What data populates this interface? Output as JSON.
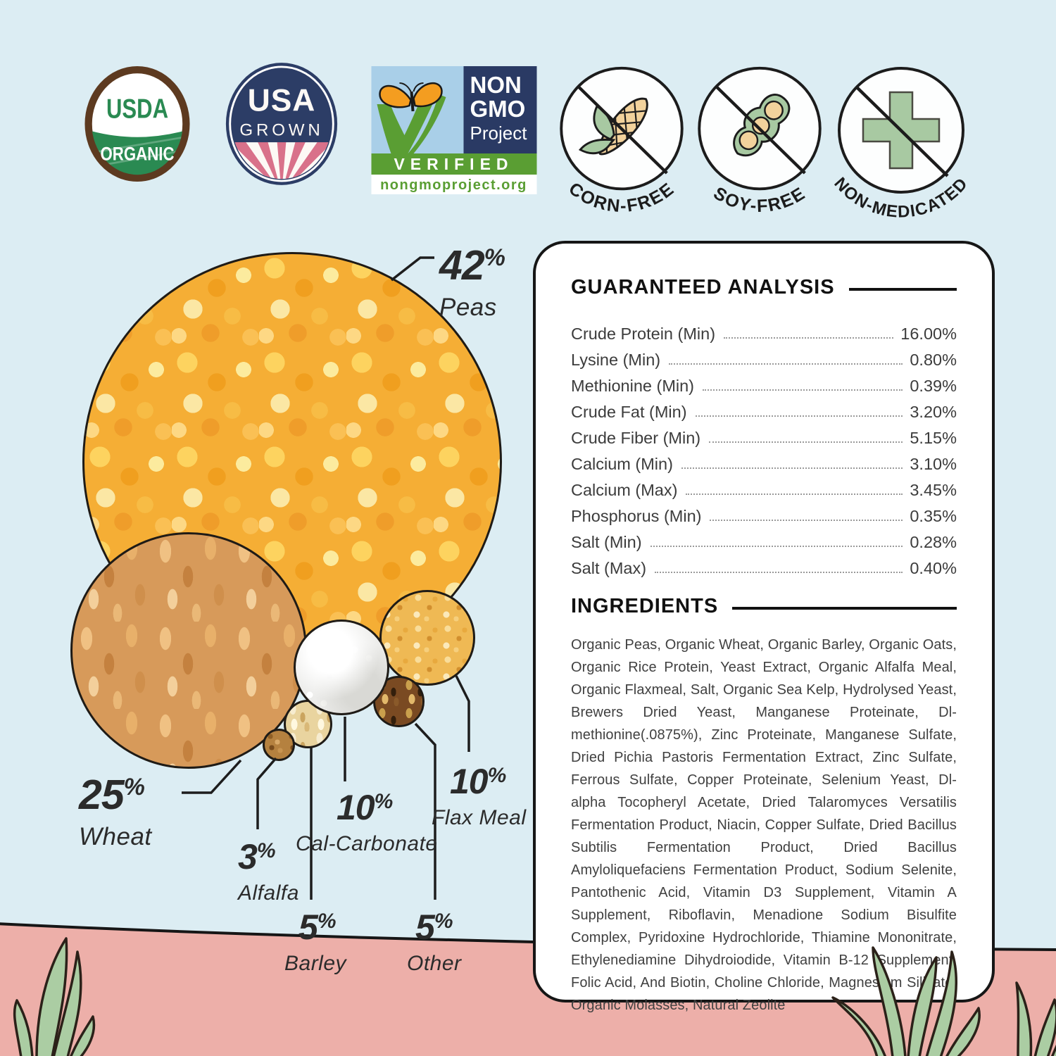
{
  "palette": {
    "background": "#dcedf3",
    "ground_pink": "#edafa9",
    "grass_green": "#abcda3",
    "outline_black": "#1c1c1c",
    "badge_navy": "#2c3d66",
    "badge_green": "#2a8a52",
    "nongmo_green": "#5a9e33",
    "nongmo_blue": "#a9cfe8",
    "sage_icon_green": "#a8c9a2",
    "ray_rose": "#d9718a"
  },
  "percent_sign": "%",
  "badges": {
    "usda": {
      "line1": "USDA",
      "line2": "ORGANIC"
    },
    "usa_grown": {
      "line1": "USA",
      "line2": "GROWN"
    },
    "non_gmo": {
      "line1": "NON",
      "line2": "GMO",
      "line3": "Project",
      "verified": "VERIFIED",
      "url": "nongmoproject.org"
    },
    "corn_free": {
      "label": "CORN-FREE"
    },
    "soy_free": {
      "label": "SOY-FREE"
    },
    "non_medicated": {
      "label": "NON-MEDICATED"
    }
  },
  "chart_data": {
    "type": "bubble",
    "unit": "%",
    "items": [
      {
        "name": "Peas",
        "pct": 42
      },
      {
        "name": "Wheat",
        "pct": 25
      },
      {
        "name": "Alfalfa",
        "pct": 3
      },
      {
        "name": "Cal-Carbonate",
        "pct": 10
      },
      {
        "name": "Barley",
        "pct": 5
      },
      {
        "name": "Flax Meal",
        "pct": 10
      },
      {
        "name": "Other",
        "pct": 5
      }
    ]
  },
  "analysis": {
    "title": "GUARANTEED ANALYSIS",
    "rows": [
      {
        "label": "Crude Protein (Min)",
        "value": "16.00%"
      },
      {
        "label": "Lysine (Min)",
        "value": "0.80%"
      },
      {
        "label": "Methionine (Min)",
        "value": "0.39%"
      },
      {
        "label": "Crude Fat (Min)",
        "value": "3.20%"
      },
      {
        "label": "Crude Fiber (Min)",
        "value": "5.15%"
      },
      {
        "label": "Calcium (Min)",
        "value": "3.10%"
      },
      {
        "label": "Calcium (Max)",
        "value": "3.45%"
      },
      {
        "label": "Phosphorus (Min)",
        "value": "0.35%"
      },
      {
        "label": "Salt (Min)",
        "value": "0.28%"
      },
      {
        "label": "Salt (Max)",
        "value": "0.40%"
      }
    ]
  },
  "ingredients": {
    "title": "INGREDIENTS",
    "text": "Organic Peas, Organic Wheat, Organic Barley, Organic Oats, Organic Rice Protein, Yeast Extract, Organic Alfalfa Meal, Organic Flaxmeal, Salt, Organic Sea Kelp, Hydrolysed Yeast, Brewers Dried Yeast, Manganese Proteinate, Dl-methionine(.0875%), Zinc Proteinate, Manganese Sulfate, Dried Pichia Pastoris Fermentation Extract, Zinc Sulfate, Ferrous Sulfate, Copper Proteinate, Selenium Yeast, Dl-alpha Tocopheryl Acetate, Dried Talaromyces Versatilis Fermentation Product, Niacin, Copper Sulfate, Dried Bacillus Subtilis Fermentation Product, Dried Bacillus Amyloliquefaciens Fermentation Product, Sodium Selenite, Pantothenic Acid, Vitamin D3 Supplement, Vitamin A Supplement, Riboflavin, Menadione Sodium Bisulfite Complex, Pyridoxine Hydrochloride, Thiamine Mononitrate, Ethylenediamine Dihydroiodide, Vitamin B-12 Supplement, Folic Acid, And Biotin, Choline Chloride, Magnesium Silicate, Organic Molasses, Natural Zeolite"
  }
}
